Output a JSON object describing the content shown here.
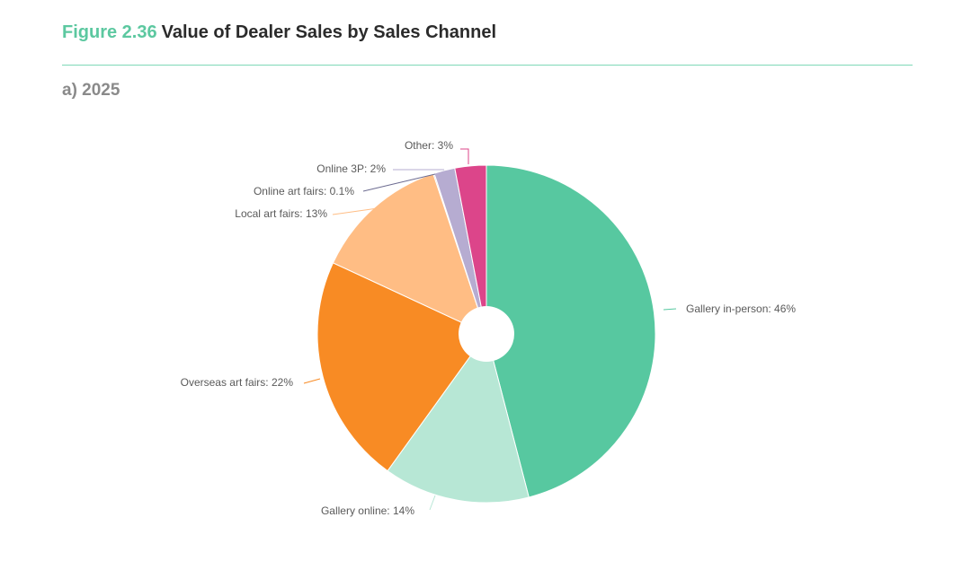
{
  "figure": {
    "number": "Figure 2.36",
    "title": "Value of Dealer Sales by Sales Channel",
    "panel": "a) 2025"
  },
  "chart_data": {
    "type": "pie",
    "donut_hole": true,
    "legend": "none",
    "title": "a) 2025",
    "slices": [
      {
        "label": "Gallery in-person: 46%",
        "value": 46,
        "color": "#57c8a0"
      },
      {
        "label": "Gallery online: 14%",
        "value": 14,
        "color": "#b7e7d5"
      },
      {
        "label": "Overseas art fairs: 22%",
        "value": 22,
        "color": "#f88b24"
      },
      {
        "label": "Local art fairs: 13%",
        "value": 13,
        "color": "#ffbd84"
      },
      {
        "label": "Online art fairs: 0.1%",
        "value": 0.1,
        "color": "#6d6c91"
      },
      {
        "label": "Online 3P: 2%",
        "value": 2,
        "color": "#b6acd1"
      },
      {
        "label": "Other: 3%",
        "value": 3,
        "color": "#dc458a"
      }
    ]
  }
}
